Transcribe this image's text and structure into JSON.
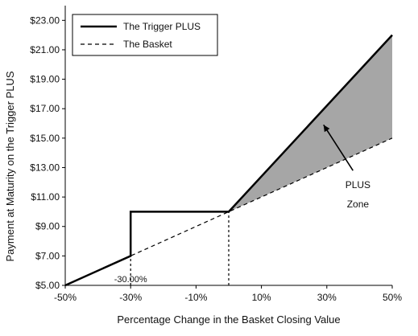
{
  "chart_data": {
    "type": "line",
    "xlabel": "Percentage Change in the Basket Closing Value",
    "ylabel": "Payment at Maturity on the Trigger PLUS",
    "x_ticks": [
      "-50%",
      "-30%",
      "-10%",
      "10%",
      "30%",
      "50%"
    ],
    "y_ticks": [
      "$5.00",
      "$7.00",
      "$9.00",
      "$11.00",
      "$13.00",
      "$15.00",
      "$17.00",
      "$19.00",
      "$21.00",
      "$23.00"
    ],
    "xlim": [
      -50,
      50
    ],
    "ylim": [
      5,
      24
    ],
    "grid": false,
    "legend_position": "top-left",
    "series": [
      {
        "name": "The Trigger PLUS",
        "style": "solid",
        "color": "#000000",
        "points": [
          [
            -50,
            5
          ],
          [
            -30,
            7
          ],
          [
            -30,
            10
          ],
          [
            0,
            10
          ],
          [
            50,
            22
          ]
        ]
      },
      {
        "name": "The Basket",
        "style": "dashed",
        "color": "#000000",
        "points": [
          [
            -50,
            5
          ],
          [
            50,
            15
          ]
        ]
      }
    ],
    "shaded_region": {
      "color": "#a6a6a6",
      "points": [
        [
          0,
          10
        ],
        [
          50,
          22
        ],
        [
          50,
          15
        ]
      ]
    },
    "annotations": {
      "zone_label": [
        "PLUS",
        "Zone"
      ],
      "trigger_label": "-30.00%"
    },
    "reference_lines": [
      -30,
      0
    ]
  }
}
